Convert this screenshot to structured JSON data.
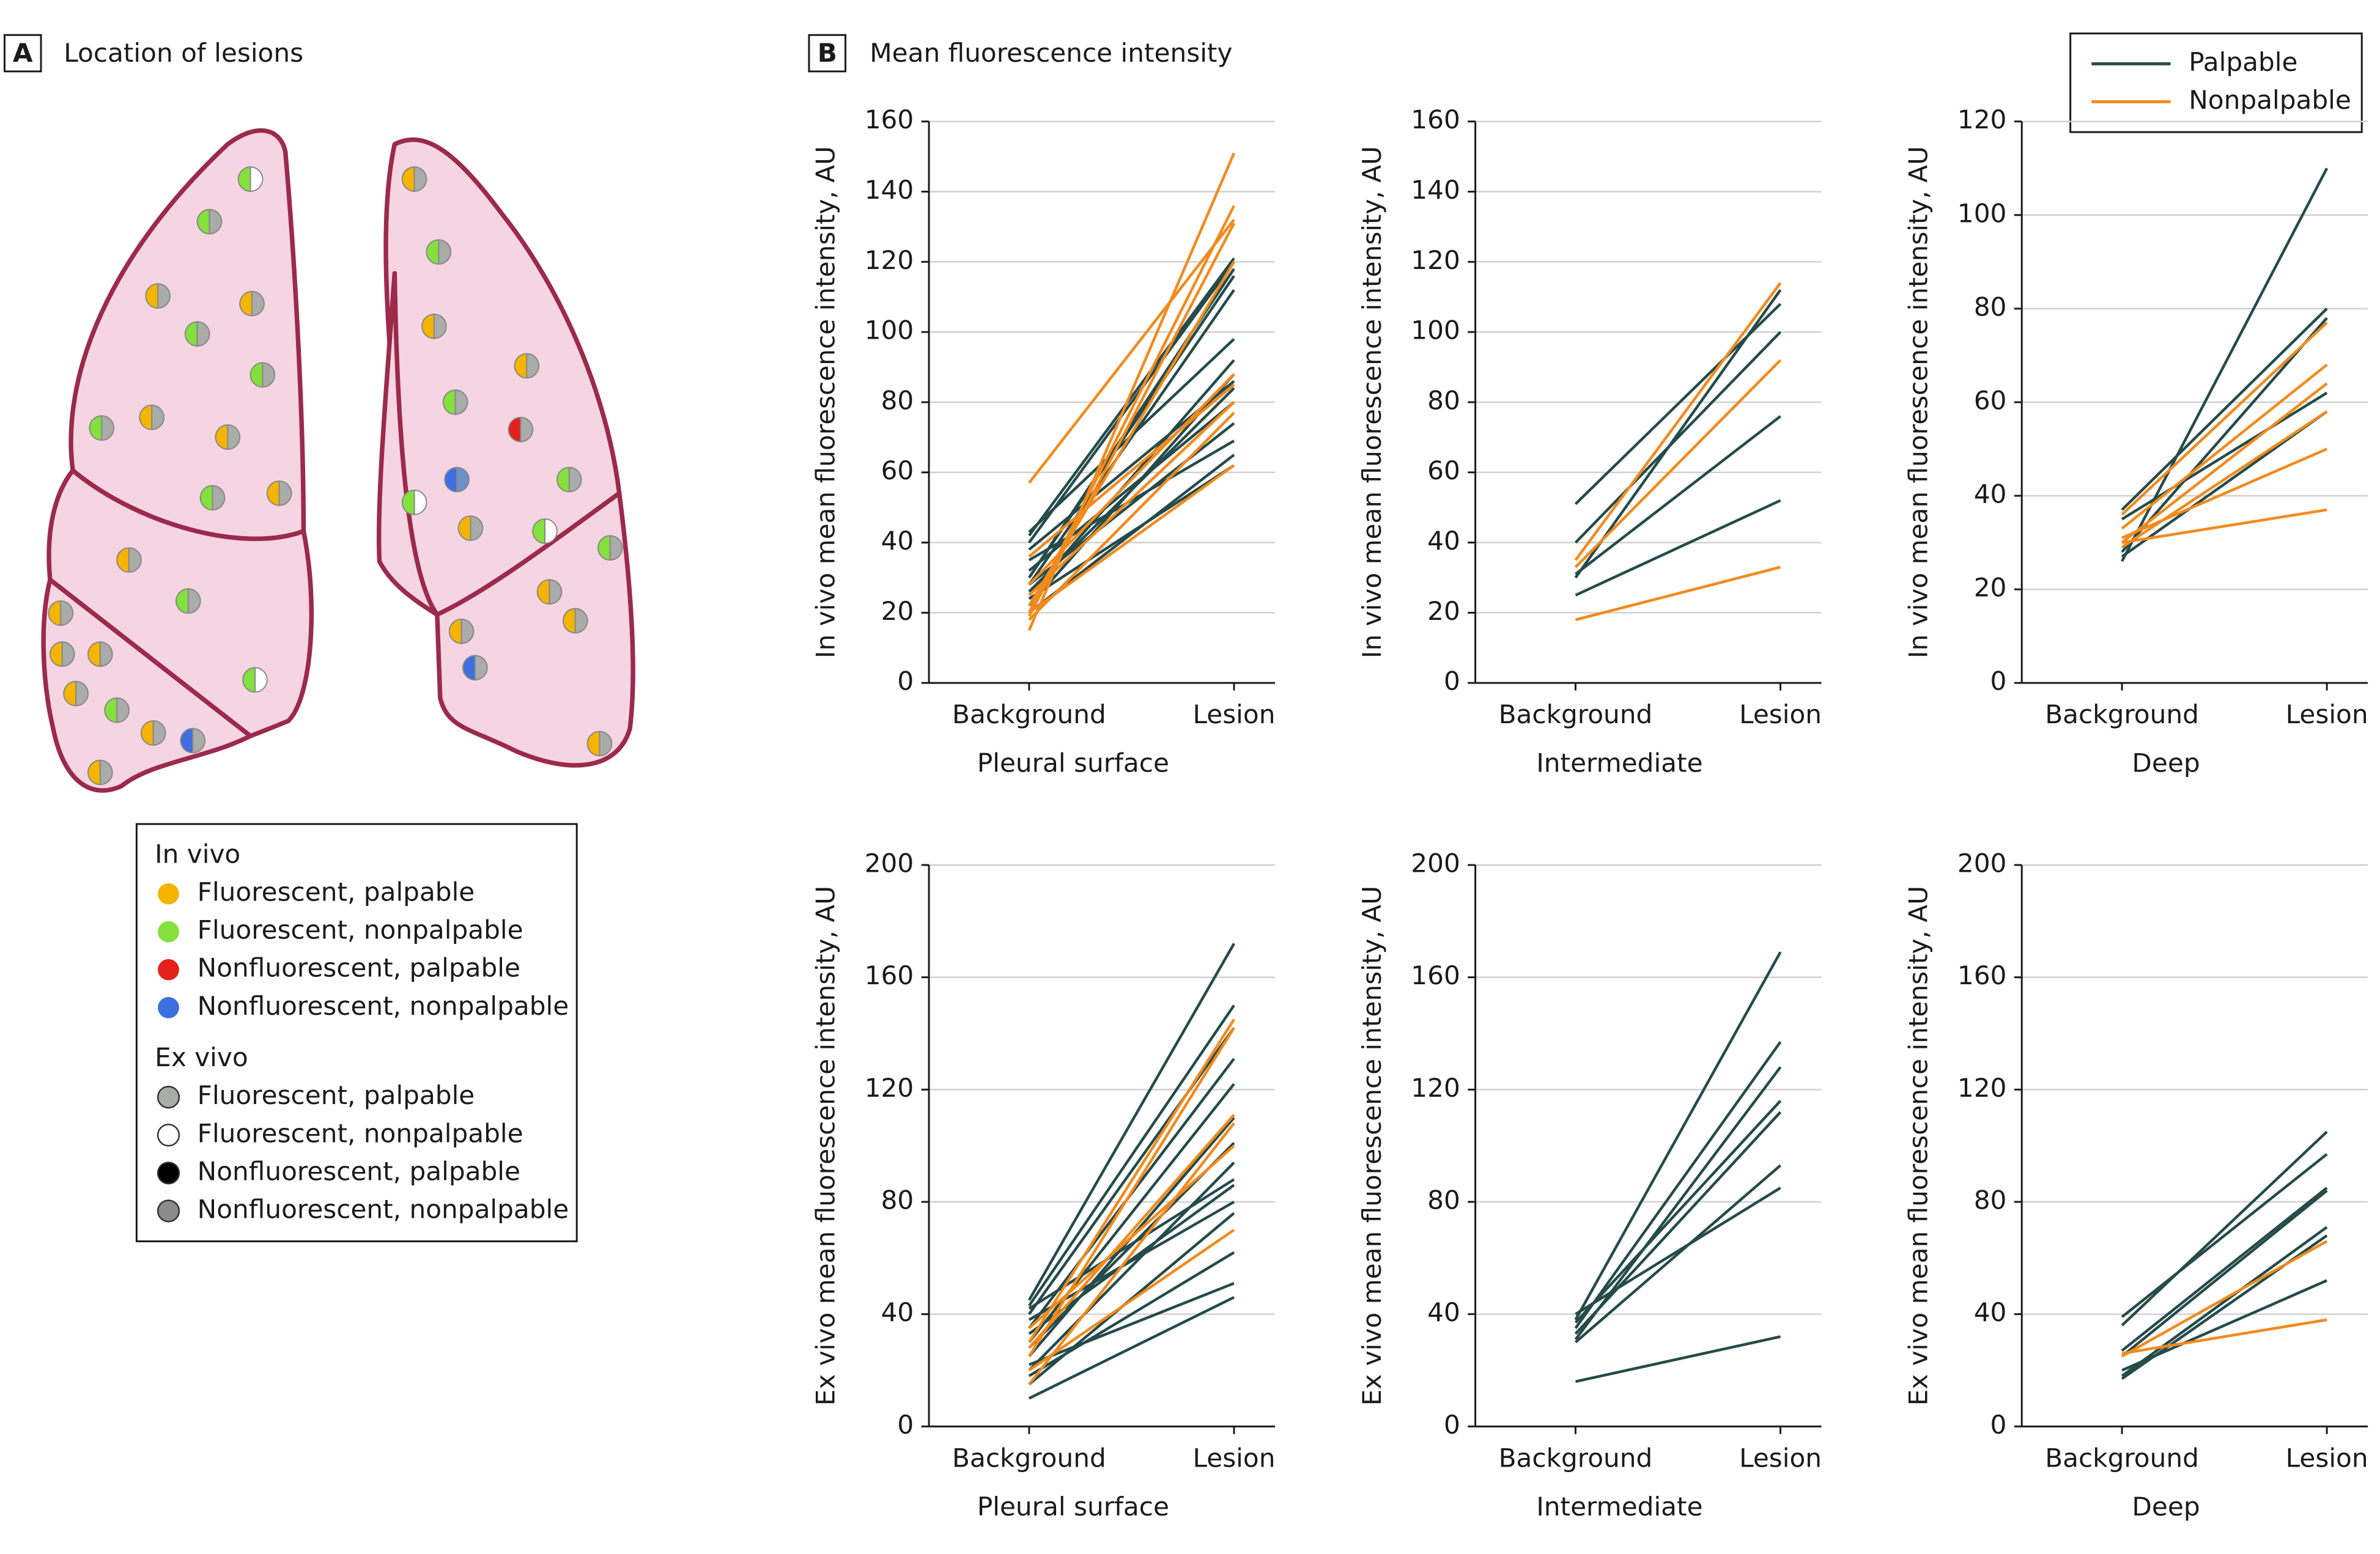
{
  "panel_a": {
    "label": "A",
    "title": "Location of lesions",
    "legend": [
      {
        "title": "In vivo",
        "items": [
          {
            "label": "Fluorescent, palpable",
            "color": "#f5b400"
          },
          {
            "label": "Fluorescent, nonpalpable",
            "color": "#84e03c"
          },
          {
            "label": "Nonfluorescent, palpable",
            "color": "#e3201b"
          },
          {
            "label": "Nonfluorescent, nonpalpable",
            "color": "#3d6fe0"
          }
        ]
      },
      {
        "title": "Ex vivo",
        "items": [
          {
            "label": "Fluorescent, palpable",
            "color": "#a9aca9"
          },
          {
            "label": "Fluorescent, nonpalpable",
            "color": "#ffffff"
          },
          {
            "label": "Nonfluorescent, palpable",
            "color": "#000000"
          },
          {
            "label": "Nonfluorescent, nonpalpable",
            "color": "#8c8c8c"
          }
        ]
      }
    ]
  },
  "panel_b": {
    "label": "B",
    "title": "Mean fluorescence intensity",
    "legend": [
      {
        "name": "Palpable",
        "color": "#254b4b"
      },
      {
        "name": "Nonpalpable",
        "color": "#f28a1c"
      }
    ]
  },
  "chart_data": [
    {
      "type": "line",
      "categories": [
        "Background",
        "Lesion"
      ],
      "x_label": "Pleural surface",
      "y_label": "In vivo mean fluorescence intensity, AU",
      "ylim": [
        0,
        160
      ],
      "yticks": [
        0,
        20,
        40,
        60,
        80,
        100,
        120,
        140,
        160
      ],
      "palpable": [
        [
          42,
          121
        ],
        [
          43,
          98
        ],
        [
          40,
          120
        ],
        [
          30,
          116
        ],
        [
          28,
          112
        ],
        [
          25,
          92
        ],
        [
          22,
          88
        ],
        [
          26,
          84
        ],
        [
          32,
          80
        ],
        [
          28,
          74
        ],
        [
          35,
          69
        ],
        [
          20,
          65
        ],
        [
          24,
          62
        ],
        [
          30,
          118
        ],
        [
          38,
          86
        ]
      ],
      "nonpalpable": [
        [
          57,
          132
        ],
        [
          15,
          151
        ],
        [
          20,
          136
        ],
        [
          19,
          131
        ],
        [
          22,
          120
        ],
        [
          28,
          88
        ],
        [
          25,
          80
        ],
        [
          18,
          77
        ],
        [
          36,
          85
        ],
        [
          20,
          62
        ]
      ]
    },
    {
      "type": "line",
      "categories": [
        "Background",
        "Lesion"
      ],
      "x_label": "Intermediate",
      "y_label": "In vivo mean fluorescence intensity, AU",
      "ylim": [
        0,
        160
      ],
      "yticks": [
        0,
        20,
        40,
        60,
        80,
        100,
        120,
        140,
        160
      ],
      "palpable": [
        [
          51,
          108
        ],
        [
          40,
          100
        ],
        [
          31,
          76
        ],
        [
          25,
          52
        ],
        [
          30,
          112
        ]
      ],
      "nonpalpable": [
        [
          35,
          114
        ],
        [
          33,
          92
        ],
        [
          18,
          33
        ]
      ]
    },
    {
      "type": "line",
      "categories": [
        "Background",
        "Lesion"
      ],
      "x_label": "Deep",
      "y_label": "In vivo mean fluorescence intensity, AU",
      "ylim": [
        0,
        120
      ],
      "yticks": [
        0,
        20,
        40,
        60,
        80,
        100,
        120
      ],
      "palpable": [
        [
          26,
          110
        ],
        [
          37,
          80
        ],
        [
          28,
          78
        ],
        [
          35,
          62
        ],
        [
          27,
          58
        ]
      ],
      "nonpalpable": [
        [
          36,
          77
        ],
        [
          33,
          68
        ],
        [
          30,
          64
        ],
        [
          29,
          58
        ],
        [
          31,
          50
        ],
        [
          30,
          37
        ]
      ]
    },
    {
      "type": "line",
      "categories": [
        "Background",
        "Lesion"
      ],
      "x_label": "Pleural surface",
      "y_label": "Ex vivo mean fluorescence intensity, AU",
      "ylim": [
        0,
        200
      ],
      "yticks": [
        0,
        40,
        80,
        120,
        160,
        200
      ],
      "palpable": [
        [
          45,
          172
        ],
        [
          43,
          150
        ],
        [
          40,
          142
        ],
        [
          35,
          131
        ],
        [
          30,
          122
        ],
        [
          25,
          110
        ],
        [
          28,
          101
        ],
        [
          20,
          94
        ],
        [
          33,
          86
        ],
        [
          38,
          80
        ],
        [
          15,
          76
        ],
        [
          18,
          62
        ],
        [
          22,
          51
        ],
        [
          10,
          46
        ],
        [
          42,
          88
        ]
      ],
      "nonpalpable": [
        [
          30,
          145
        ],
        [
          25,
          142
        ],
        [
          28,
          111
        ],
        [
          15,
          108
        ],
        [
          20,
          70
        ],
        [
          35,
          100
        ]
      ]
    },
    {
      "type": "line",
      "categories": [
        "Background",
        "Lesion"
      ],
      "x_label": "Intermediate",
      "y_label": "Ex vivo mean fluorescence intensity, AU",
      "ylim": [
        0,
        200
      ],
      "yticks": [
        0,
        40,
        80,
        120,
        160,
        200
      ],
      "palpable": [
        [
          38,
          169
        ],
        [
          35,
          137
        ],
        [
          31,
          128
        ],
        [
          37,
          116
        ],
        [
          33,
          112
        ],
        [
          30,
          93
        ],
        [
          40,
          85
        ],
        [
          16,
          32
        ]
      ],
      "nonpalpable": []
    },
    {
      "type": "line",
      "categories": [
        "Background",
        "Lesion"
      ],
      "x_label": "Deep",
      "y_label": "Ex vivo mean fluorescence intensity, AU",
      "ylim": [
        0,
        200
      ],
      "yticks": [
        0,
        40,
        80,
        120,
        160,
        200
      ],
      "palpable": [
        [
          36,
          105
        ],
        [
          39,
          97
        ],
        [
          27,
          85
        ],
        [
          25,
          84
        ],
        [
          18,
          71
        ],
        [
          17,
          68
        ],
        [
          20,
          52
        ]
      ],
      "nonpalpable": [
        [
          25,
          66
        ],
        [
          26,
          38
        ]
      ]
    }
  ]
}
